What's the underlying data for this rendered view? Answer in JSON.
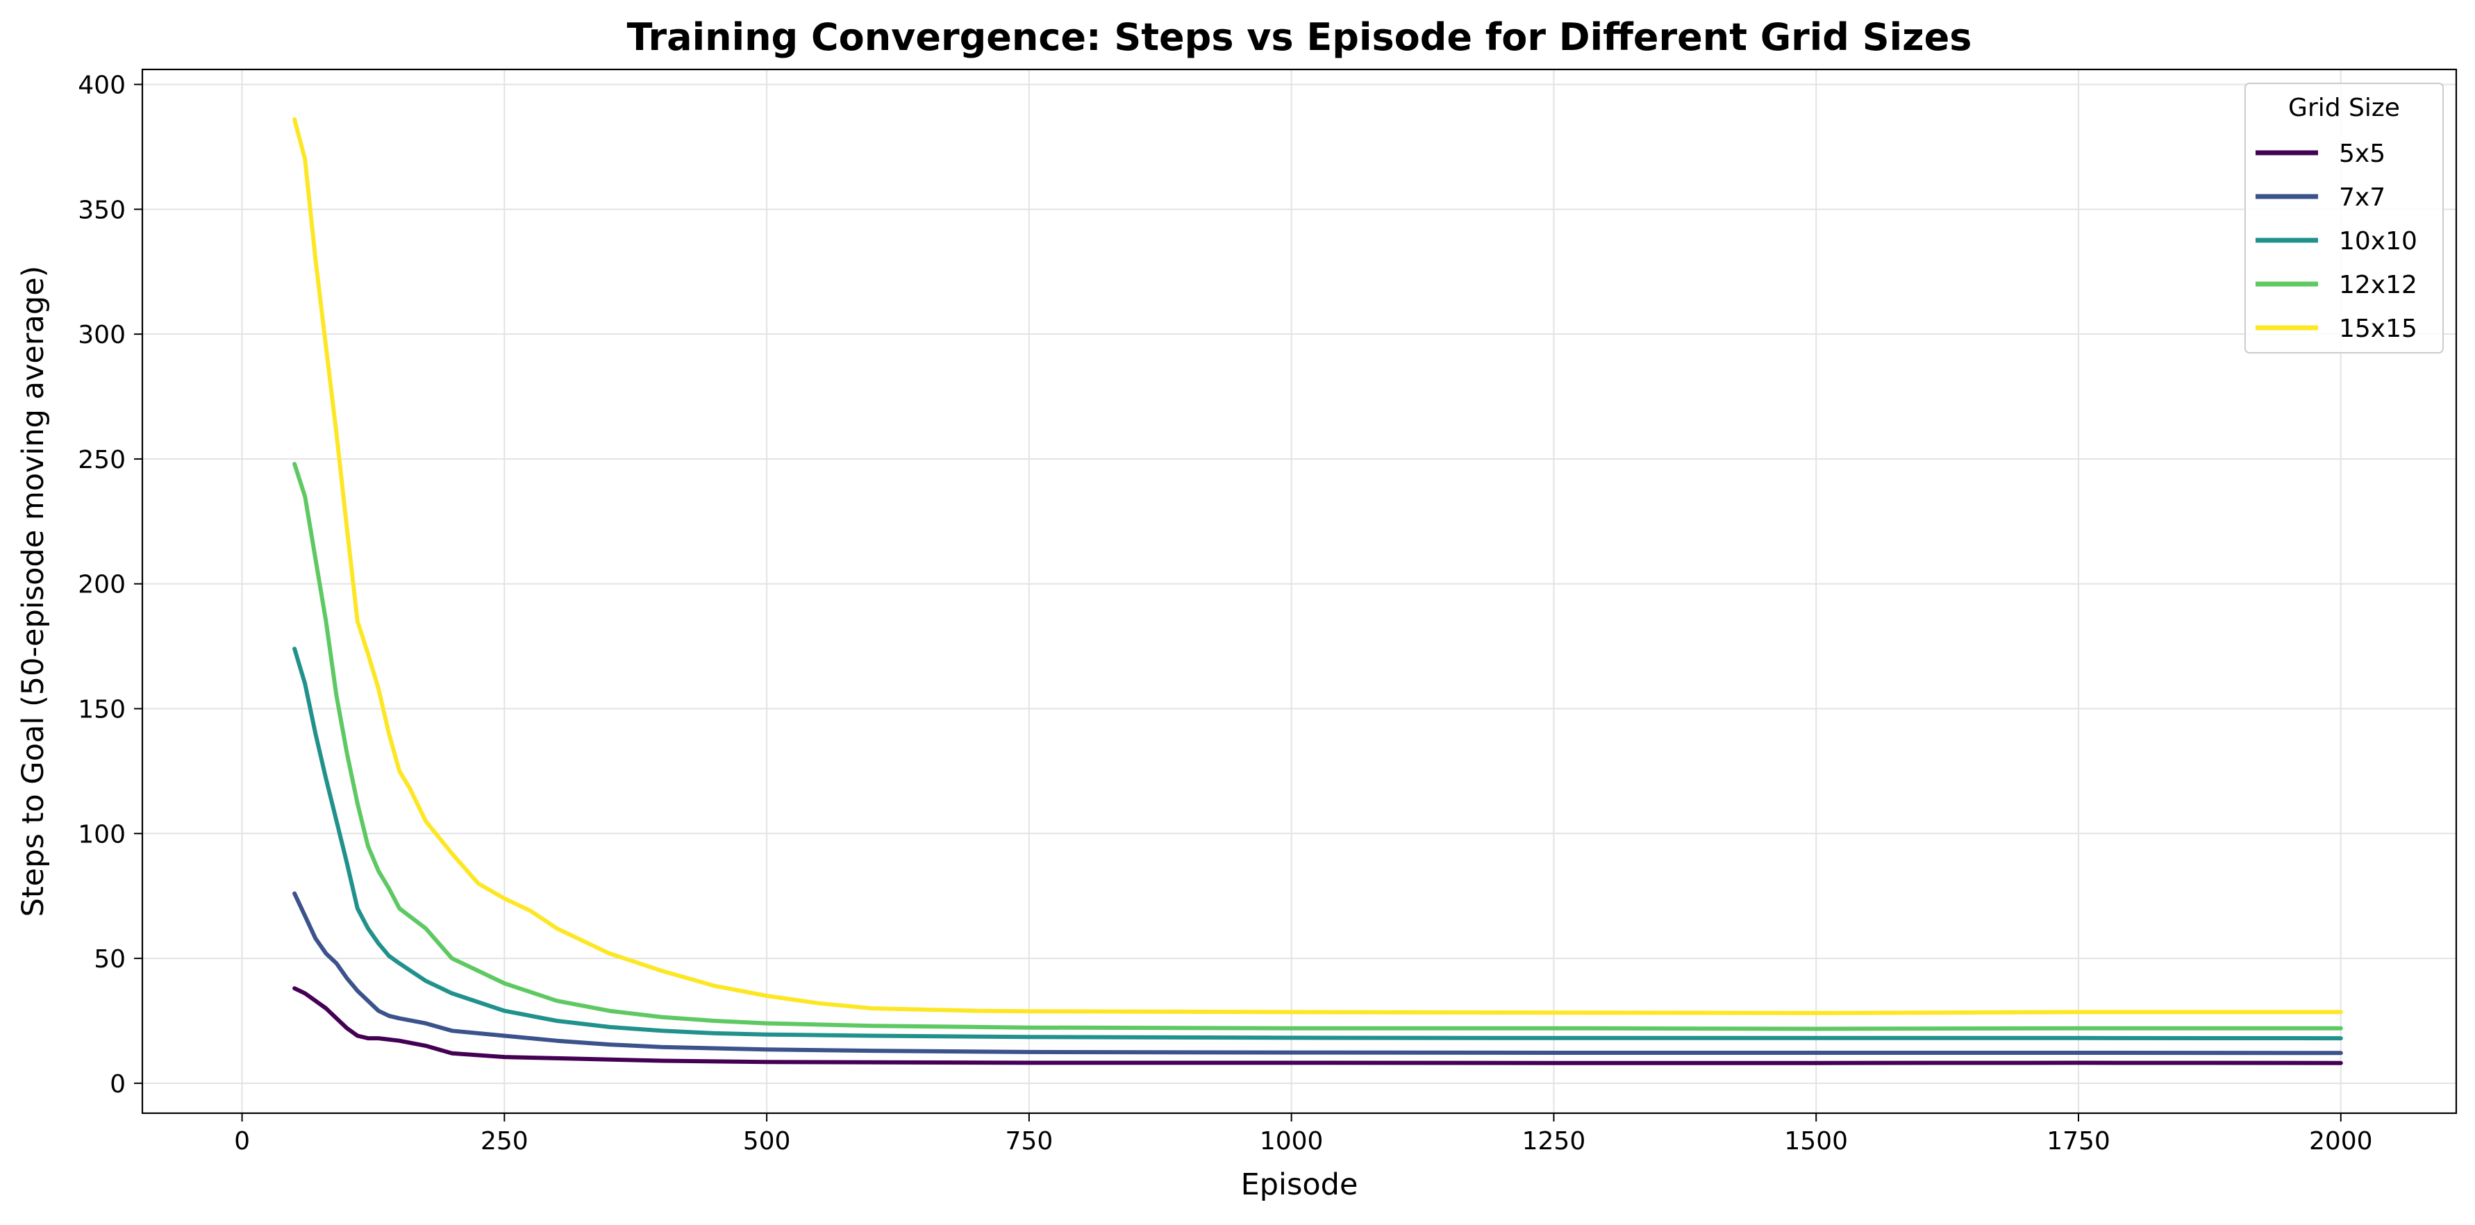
{
  "chart_data": {
    "type": "line",
    "title": "Training Convergence: Steps vs Episode for Different Grid Sizes",
    "xlabel": "Episode",
    "ylabel": "Steps to Goal (50-episode moving average)",
    "xlim": [
      -95,
      2110
    ],
    "ylim": [
      -12,
      406
    ],
    "xticks": [
      0,
      250,
      500,
      750,
      1000,
      1250,
      1500,
      1750,
      2000
    ],
    "yticks": [
      0,
      50,
      100,
      150,
      200,
      250,
      300,
      350,
      400
    ],
    "grid": true,
    "legend": {
      "title": "Grid Size",
      "placement": "top-right"
    },
    "series": [
      {
        "name": "5x5",
        "color": "#440154",
        "x": [
          50,
          60,
          70,
          80,
          90,
          100,
          110,
          120,
          130,
          140,
          150,
          175,
          200,
          250,
          300,
          400,
          500,
          750,
          1000,
          1250,
          1500,
          1750,
          2000
        ],
        "y": [
          38,
          36,
          33,
          30,
          26,
          22,
          19,
          18,
          18,
          17.5,
          17,
          15,
          12,
          10.5,
          10,
          9,
          8.5,
          8.2,
          8.2,
          8.1,
          8.1,
          8.2,
          8.1
        ]
      },
      {
        "name": "7x7",
        "color": "#3b528b",
        "x": [
          50,
          60,
          70,
          80,
          90,
          100,
          110,
          120,
          130,
          140,
          150,
          175,
          200,
          250,
          300,
          350,
          400,
          500,
          600,
          750,
          1000,
          1250,
          1500,
          1750,
          2000
        ],
        "y": [
          76,
          67,
          58,
          52,
          48,
          42,
          37,
          33,
          29,
          27,
          26,
          24,
          21,
          19,
          17,
          15.5,
          14.5,
          13.5,
          13,
          12.5,
          12.3,
          12.2,
          12.2,
          12.2,
          12.1
        ]
      },
      {
        "name": "10x10",
        "color": "#21918c",
        "x": [
          50,
          60,
          70,
          80,
          90,
          100,
          110,
          120,
          130,
          140,
          150,
          175,
          200,
          250,
          300,
          350,
          400,
          450,
          500,
          600,
          750,
          1000,
          1250,
          1500,
          1750,
          2000
        ],
        "y": [
          174,
          160,
          140,
          122,
          105,
          88,
          70,
          62,
          56,
          51,
          48,
          41,
          36,
          29,
          25,
          22.5,
          21,
          20,
          19.5,
          19,
          18.5,
          18.2,
          18.1,
          18.1,
          18.1,
          18
        ]
      },
      {
        "name": "12x12",
        "color": "#5ec962",
        "x": [
          50,
          60,
          70,
          80,
          90,
          100,
          110,
          120,
          130,
          140,
          150,
          175,
          200,
          225,
          250,
          300,
          350,
          400,
          450,
          500,
          600,
          700,
          750,
          1000,
          1250,
          1500,
          1750,
          2000
        ],
        "y": [
          248,
          235,
          210,
          185,
          155,
          132,
          112,
          95,
          85,
          78,
          70,
          62,
          50,
          45,
          40,
          33,
          29,
          26.5,
          25,
          24,
          23,
          22.5,
          22.3,
          22,
          22,
          21.8,
          22,
          22
        ]
      },
      {
        "name": "15x15",
        "color": "#fde725",
        "x": [
          50,
          60,
          70,
          80,
          90,
          100,
          110,
          120,
          130,
          140,
          150,
          160,
          175,
          200,
          225,
          250,
          275,
          300,
          350,
          400,
          450,
          500,
          550,
          600,
          700,
          750,
          1000,
          1250,
          1500,
          1750,
          2000
        ],
        "y": [
          386,
          370,
          330,
          295,
          260,
          222,
          185,
          172,
          158,
          140,
          125,
          118,
          105,
          92,
          80,
          74,
          69,
          62,
          52,
          45,
          39,
          35,
          32,
          30,
          29,
          28.8,
          28.5,
          28.3,
          28.1,
          28.5,
          28.5
        ]
      }
    ]
  }
}
